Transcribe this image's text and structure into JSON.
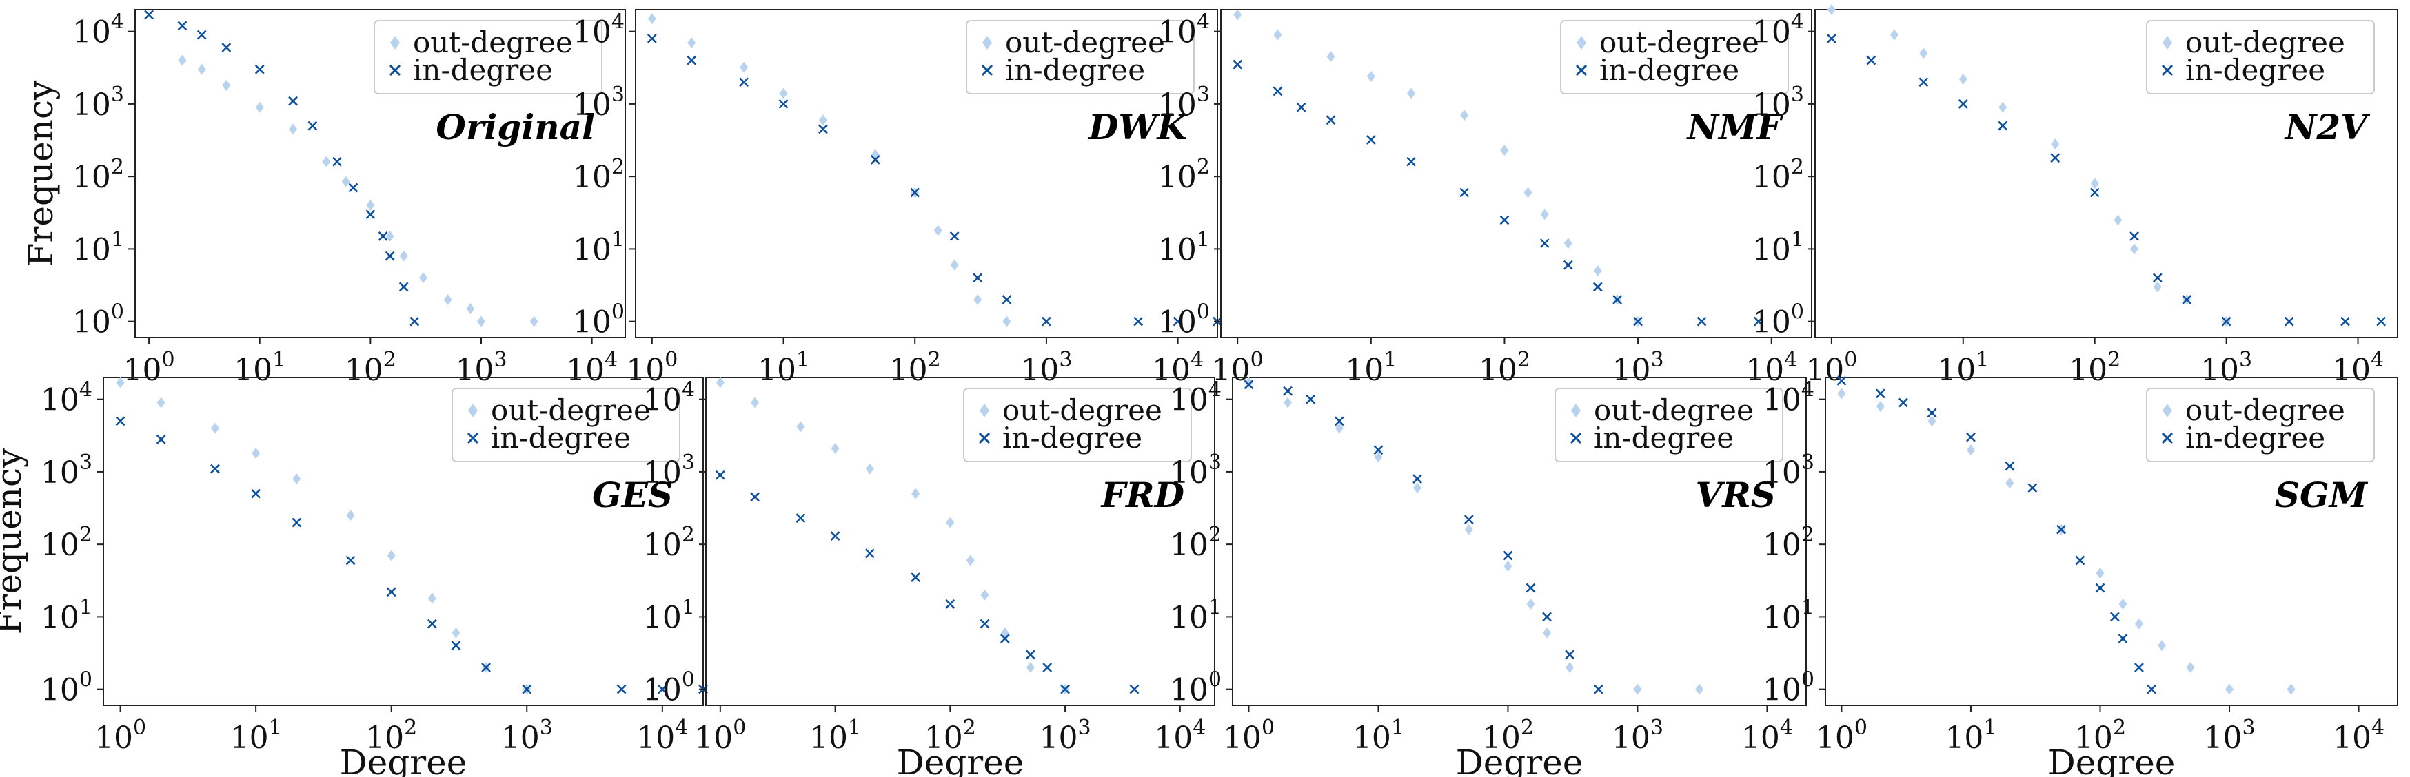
{
  "chart_data": [
    {
      "type": "scatter",
      "title": "Original",
      "xlabel": "",
      "ylabel": "Frequency",
      "xscale": "log",
      "yscale": "log",
      "xlim": [
        0.75,
        20000
      ],
      "ylim": [
        0.6,
        20000
      ],
      "legend": "top-right",
      "series": [
        {
          "name": "out-degree",
          "marker": "diamond",
          "color": "#b9d3ee",
          "points": [
            [
              2,
              4000
            ],
            [
              3,
              3000
            ],
            [
              5,
              1800
            ],
            [
              10,
              900
            ],
            [
              20,
              450
            ],
            [
              40,
              160
            ],
            [
              60,
              85
            ],
            [
              100,
              40
            ],
            [
              150,
              15
            ],
            [
              200,
              8
            ],
            [
              300,
              4
            ],
            [
              500,
              2
            ],
            [
              800,
              1.5
            ],
            [
              1000,
              1
            ],
            [
              3000,
              1
            ]
          ]
        },
        {
          "name": "in-degree",
          "marker": "x",
          "color": "#0b4f9c",
          "points": [
            [
              1,
              17000
            ],
            [
              2,
              12000
            ],
            [
              3,
              9000
            ],
            [
              5,
              6000
            ],
            [
              10,
              3000
            ],
            [
              20,
              1100
            ],
            [
              30,
              500
            ],
            [
              50,
              160
            ],
            [
              70,
              70
            ],
            [
              100,
              30
            ],
            [
              130,
              15
            ],
            [
              150,
              8
            ],
            [
              200,
              3
            ],
            [
              250,
              1
            ]
          ]
        }
      ]
    },
    {
      "type": "scatter",
      "title": "DWK",
      "xlabel": "",
      "ylabel": "",
      "xscale": "log",
      "yscale": "log",
      "xlim": [
        0.75,
        20000
      ],
      "ylim": [
        0.6,
        20000
      ],
      "legend": "top-right",
      "series": [
        {
          "name": "out-degree",
          "marker": "diamond",
          "color": "#b9d3ee",
          "points": [
            [
              1,
              15000
            ],
            [
              2,
              7000
            ],
            [
              5,
              3200
            ],
            [
              10,
              1400
            ],
            [
              20,
              600
            ],
            [
              50,
              200
            ],
            [
              100,
              60
            ],
            [
              150,
              18
            ],
            [
              200,
              6
            ],
            [
              300,
              2
            ],
            [
              500,
              1
            ]
          ]
        },
        {
          "name": "in-degree",
          "marker": "x",
          "color": "#0b4f9c",
          "points": [
            [
              1,
              8000
            ],
            [
              2,
              4000
            ],
            [
              5,
              2000
            ],
            [
              10,
              1000
            ],
            [
              20,
              450
            ],
            [
              50,
              170
            ],
            [
              100,
              60
            ],
            [
              200,
              15
            ],
            [
              300,
              4
            ],
            [
              500,
              2
            ],
            [
              1000,
              1
            ],
            [
              5000,
              1
            ],
            [
              10000,
              1
            ],
            [
              20000,
              1
            ]
          ]
        }
      ]
    },
    {
      "type": "scatter",
      "title": "NMF",
      "xlabel": "",
      "ylabel": "",
      "xscale": "log",
      "yscale": "log",
      "xlim": [
        0.75,
        20000
      ],
      "ylim": [
        0.6,
        20000
      ],
      "legend": "top-right",
      "series": [
        {
          "name": "out-degree",
          "marker": "diamond",
          "color": "#b9d3ee",
          "points": [
            [
              1,
              17000
            ],
            [
              2,
              9000
            ],
            [
              5,
              4500
            ],
            [
              10,
              2400
            ],
            [
              20,
              1400
            ],
            [
              50,
              700
            ],
            [
              100,
              230
            ],
            [
              150,
              60
            ],
            [
              200,
              30
            ],
            [
              300,
              12
            ],
            [
              500,
              5
            ],
            [
              700,
              2
            ],
            [
              1000,
              1
            ]
          ]
        },
        {
          "name": "in-degree",
          "marker": "x",
          "color": "#0b4f9c",
          "points": [
            [
              1,
              3500
            ],
            [
              2,
              1500
            ],
            [
              3,
              900
            ],
            [
              5,
              600
            ],
            [
              10,
              320
            ],
            [
              20,
              160
            ],
            [
              50,
              60
            ],
            [
              100,
              25
            ],
            [
              200,
              12
            ],
            [
              300,
              6
            ],
            [
              500,
              3
            ],
            [
              700,
              2
            ],
            [
              1000,
              1
            ],
            [
              3000,
              1
            ],
            [
              8000,
              1
            ]
          ]
        }
      ]
    },
    {
      "type": "scatter",
      "title": "N2V",
      "xlabel": "",
      "ylabel": "",
      "xscale": "log",
      "yscale": "log",
      "xlim": [
        0.75,
        20000
      ],
      "ylim": [
        0.6,
        20000
      ],
      "legend": "top-right",
      "series": [
        {
          "name": "out-degree",
          "marker": "diamond",
          "color": "#b9d3ee",
          "points": [
            [
              1,
              20000
            ],
            [
              3,
              9000
            ],
            [
              5,
              5000
            ],
            [
              10,
              2200
            ],
            [
              20,
              900
            ],
            [
              50,
              280
            ],
            [
              100,
              80
            ],
            [
              150,
              25
            ],
            [
              200,
              10
            ],
            [
              300,
              3
            ],
            [
              500,
              2
            ],
            [
              1000,
              1
            ]
          ]
        },
        {
          "name": "in-degree",
          "marker": "x",
          "color": "#0b4f9c",
          "points": [
            [
              1,
              8000
            ],
            [
              2,
              4000
            ],
            [
              5,
              2000
            ],
            [
              10,
              1000
            ],
            [
              20,
              500
            ],
            [
              50,
              180
            ],
            [
              100,
              60
            ],
            [
              200,
              15
            ],
            [
              300,
              4
            ],
            [
              500,
              2
            ],
            [
              1000,
              1
            ],
            [
              3000,
              1
            ],
            [
              8000,
              1
            ],
            [
              15000,
              1
            ]
          ]
        }
      ]
    },
    {
      "type": "scatter",
      "title": "GES",
      "xlabel": "Degree",
      "ylabel": "Frequency",
      "xscale": "log",
      "yscale": "log",
      "xlim": [
        0.75,
        20000
      ],
      "ylim": [
        0.6,
        20000
      ],
      "legend": "top-right",
      "series": [
        {
          "name": "out-degree",
          "marker": "diamond",
          "color": "#b9d3ee",
          "points": [
            [
              1,
              17000
            ],
            [
              2,
              9000
            ],
            [
              5,
              4000
            ],
            [
              10,
              1800
            ],
            [
              20,
              800
            ],
            [
              50,
              250
            ],
            [
              100,
              70
            ],
            [
              200,
              18
            ],
            [
              300,
              6
            ],
            [
              500,
              2
            ],
            [
              1000,
              1
            ]
          ]
        },
        {
          "name": "in-degree",
          "marker": "x",
          "color": "#0b4f9c",
          "points": [
            [
              1,
              5000
            ],
            [
              2,
              2800
            ],
            [
              5,
              1100
            ],
            [
              10,
              500
            ],
            [
              20,
              200
            ],
            [
              50,
              60
            ],
            [
              100,
              22
            ],
            [
              200,
              8
            ],
            [
              300,
              4
            ],
            [
              500,
              2
            ],
            [
              1000,
              1
            ],
            [
              5000,
              1
            ],
            [
              10000,
              1
            ],
            [
              20000,
              1
            ]
          ]
        }
      ]
    },
    {
      "type": "scatter",
      "title": "FRD",
      "xlabel": "Degree",
      "ylabel": "",
      "xscale": "log",
      "yscale": "log",
      "xlim": [
        0.75,
        20000
      ],
      "ylim": [
        0.6,
        20000
      ],
      "legend": "top-right",
      "series": [
        {
          "name": "out-degree",
          "marker": "diamond",
          "color": "#b9d3ee",
          "points": [
            [
              1,
              17000
            ],
            [
              2,
              9000
            ],
            [
              5,
              4200
            ],
            [
              10,
              2100
            ],
            [
              20,
              1100
            ],
            [
              50,
              500
            ],
            [
              100,
              200
            ],
            [
              150,
              60
            ],
            [
              200,
              20
            ],
            [
              300,
              6
            ],
            [
              500,
              2
            ],
            [
              1000,
              1
            ]
          ]
        },
        {
          "name": "in-degree",
          "marker": "x",
          "color": "#0b4f9c",
          "points": [
            [
              1,
              900
            ],
            [
              2,
              450
            ],
            [
              5,
              230
            ],
            [
              10,
              130
            ],
            [
              20,
              75
            ],
            [
              50,
              35
            ],
            [
              100,
              15
            ],
            [
              200,
              8
            ],
            [
              300,
              5
            ],
            [
              500,
              3
            ],
            [
              700,
              2
            ],
            [
              1000,
              1
            ],
            [
              4000,
              1
            ]
          ]
        }
      ]
    },
    {
      "type": "scatter",
      "title": "VRS",
      "xlabel": "Degree",
      "ylabel": "",
      "xscale": "log",
      "yscale": "log",
      "xlim": [
        0.75,
        20000
      ],
      "ylim": [
        0.6,
        20000
      ],
      "legend": "top-right",
      "series": [
        {
          "name": "out-degree",
          "marker": "diamond",
          "color": "#b9d3ee",
          "points": [
            [
              1,
              17000
            ],
            [
              2,
              9000
            ],
            [
              5,
              4000
            ],
            [
              10,
              1600
            ],
            [
              20,
              600
            ],
            [
              50,
              160
            ],
            [
              100,
              50
            ],
            [
              150,
              15
            ],
            [
              200,
              6
            ],
            [
              300,
              2
            ],
            [
              1000,
              1
            ],
            [
              3000,
              1
            ]
          ]
        },
        {
          "name": "in-degree",
          "marker": "x",
          "color": "#0b4f9c",
          "points": [
            [
              1,
              16000
            ],
            [
              2,
              13000
            ],
            [
              3,
              10000
            ],
            [
              5,
              5000
            ],
            [
              10,
              2000
            ],
            [
              20,
              800
            ],
            [
              50,
              220
            ],
            [
              100,
              70
            ],
            [
              150,
              25
            ],
            [
              200,
              10
            ],
            [
              300,
              3
            ],
            [
              500,
              1
            ]
          ]
        }
      ]
    },
    {
      "type": "scatter",
      "title": "SGM",
      "xlabel": "Degree",
      "ylabel": "",
      "xscale": "log",
      "yscale": "log",
      "xlim": [
        0.75,
        20000
      ],
      "ylim": [
        0.6,
        20000
      ],
      "legend": "top-right",
      "series": [
        {
          "name": "out-degree",
          "marker": "diamond",
          "color": "#b9d3ee",
          "points": [
            [
              1,
              12000
            ],
            [
              2,
              8000
            ],
            [
              5,
              5000
            ],
            [
              10,
              2000
            ],
            [
              20,
              700
            ],
            [
              50,
              160
            ],
            [
              100,
              40
            ],
            [
              150,
              15
            ],
            [
              200,
              8
            ],
            [
              300,
              4
            ],
            [
              500,
              2
            ],
            [
              1000,
              1
            ],
            [
              3000,
              1
            ]
          ]
        },
        {
          "name": "in-degree",
          "marker": "x",
          "color": "#0b4f9c",
          "points": [
            [
              1,
              18000
            ],
            [
              2,
              12000
            ],
            [
              3,
              9000
            ],
            [
              5,
              6500
            ],
            [
              10,
              3000
            ],
            [
              20,
              1200
            ],
            [
              30,
              600
            ],
            [
              50,
              160
            ],
            [
              70,
              60
            ],
            [
              100,
              25
            ],
            [
              130,
              10
            ],
            [
              150,
              5
            ],
            [
              200,
              2
            ],
            [
              250,
              1
            ]
          ]
        }
      ]
    }
  ]
}
